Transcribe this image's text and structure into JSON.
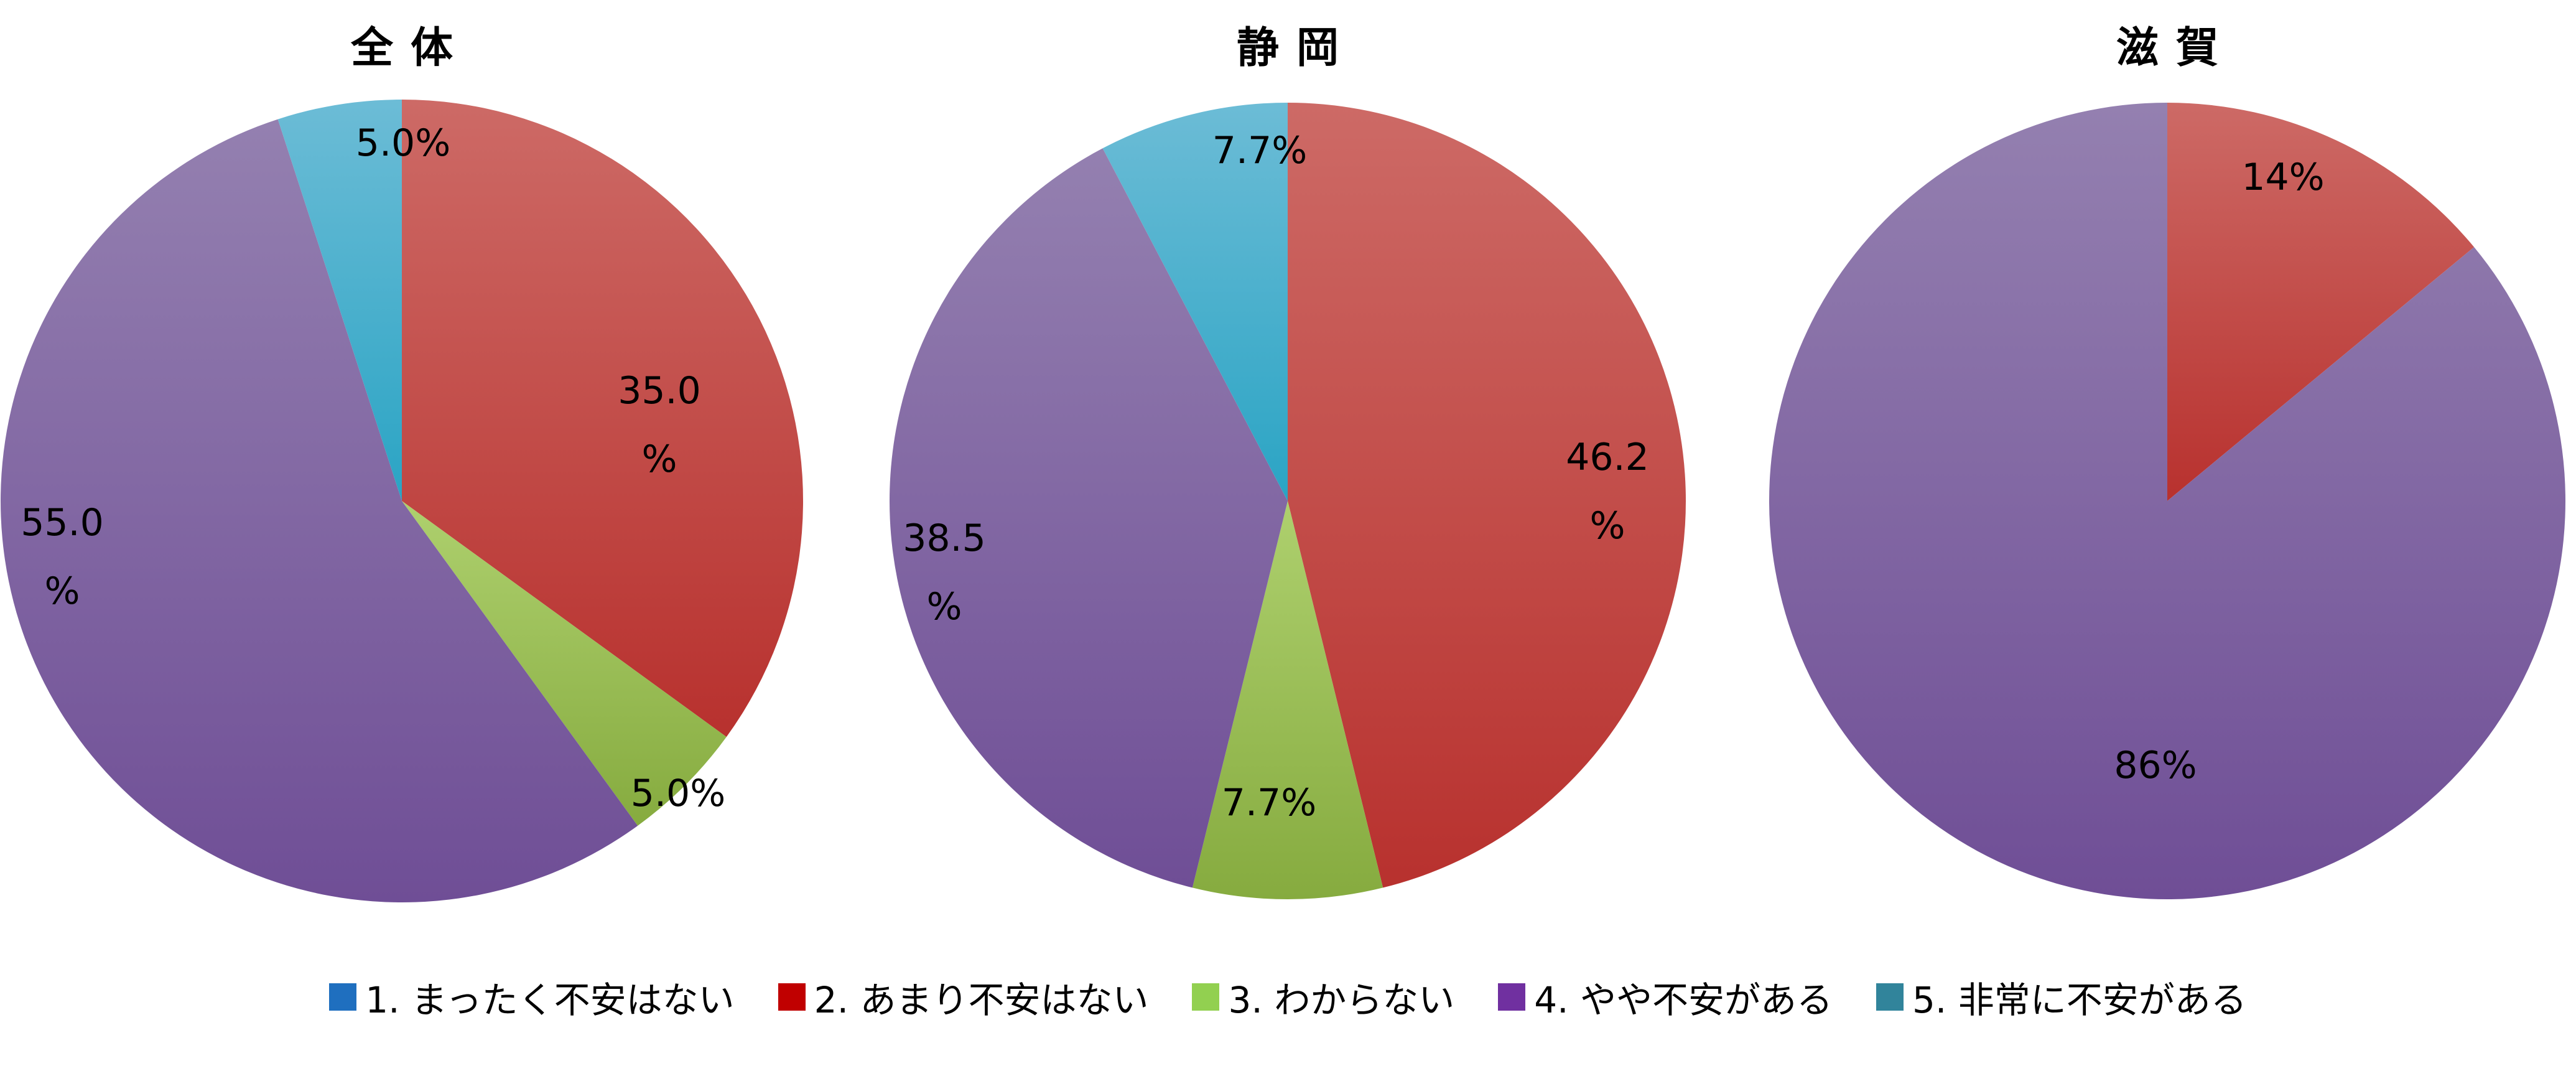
{
  "chart_data": {
    "type": "pie",
    "legend_position": "bottom",
    "legend": [
      {
        "label": "1. まったく不安はない",
        "color": "#1f6fbf"
      },
      {
        "label": "2. あまり不安はない",
        "color": "#c00000"
      },
      {
        "label": "3. わからない",
        "color": "#92d050"
      },
      {
        "label": "4. やや不安がある",
        "color": "#7030a0"
      },
      {
        "label": "5. 非常に不安がある",
        "color": "#31849b"
      }
    ],
    "charts": [
      {
        "title": "全体",
        "categories": [
          "1. まったく不安はない",
          "2. あまり不安はない",
          "3. わからない",
          "4. やや不安がある",
          "5. 非常に不安がある"
        ],
        "values": [
          0,
          35.0,
          5.0,
          55.0,
          5.0
        ],
        "labels": [
          "",
          "35.0\n%",
          "5.0%",
          "55.0\n%",
          "5.0%"
        ]
      },
      {
        "title": "静岡",
        "categories": [
          "1. まったく不安はない",
          "2. あまり不安はない",
          "3. わからない",
          "4. やや不安がある",
          "5. 非常に不安がある"
        ],
        "values": [
          0,
          46.2,
          7.7,
          38.5,
          7.7
        ],
        "labels": [
          "",
          "46.2\n%",
          "7.7%",
          "38.5\n%",
          "7.7%"
        ]
      },
      {
        "title": "滋賀",
        "categories": [
          "1. まったく不安はない",
          "2. あまり不安はない",
          "3. わからない",
          "4. やや不安がある",
          "5. 非常に不安がある"
        ],
        "values": [
          0,
          14,
          0,
          86,
          0
        ],
        "labels": [
          "",
          "14%",
          "",
          "86%",
          ""
        ]
      }
    ]
  },
  "colors": {
    "slice_fill": [
      "#4f81bd",
      "#c0504d",
      "#9bbb59",
      "#8064a2",
      "#4bacc6"
    ]
  }
}
